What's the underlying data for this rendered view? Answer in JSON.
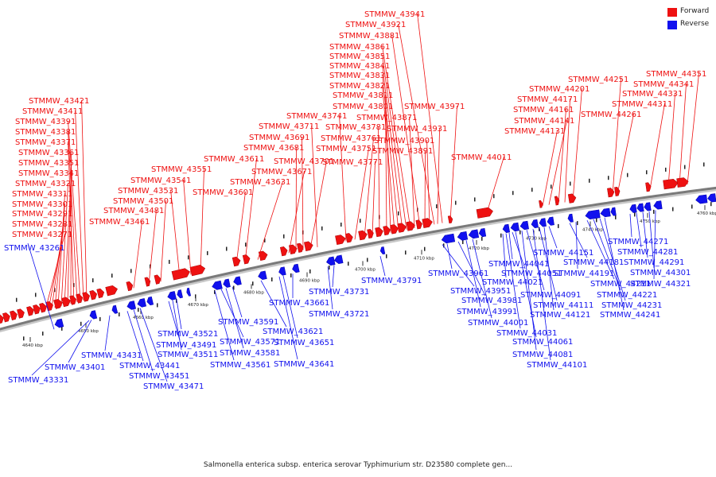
{
  "title": "Salmonella enterica subsp. enterica serovar Typhimurium str. D23580 complete gen...",
  "legend": {
    "forward_label": "Forward",
    "reverse_label": "Reverse",
    "forward_color": "#ee1111",
    "reverse_color": "#1111ee"
  },
  "scale": {
    "unit": "kbp",
    "ticks": [
      "4640 kbp",
      "4650 kbp",
      "4660 kbp",
      "4670 kbp",
      "4680 kbp",
      "4690 kbp",
      "4700 kbp",
      "4710 kbp",
      "4720 kbp",
      "4730 kbp",
      "4740 kbp",
      "4750 kbp",
      "4760 kbp"
    ]
  },
  "forward_genes": [
    "STMMW_43271",
    "STMMW_43281",
    "STMMW_43291",
    "STMMW_43301",
    "STMMW_43311",
    "STMMW_43321",
    "STMMW_43341",
    "STMMW_43351",
    "STMMW_43361",
    "STMMW_43371",
    "STMMW_43381",
    "STMMW_43391",
    "STMMW_43411",
    "STMMW_43421",
    "STMMW_43461",
    "STMMW_43481",
    "STMMW_43501",
    "STMMW_43531",
    "STMMW_43541",
    "STMMW_43551",
    "STMMW_43601",
    "STMMW_43611",
    "STMMW_43631",
    "STMMW_43671",
    "STMMW_43681",
    "STMMW_43691",
    "STMMW_43701",
    "STMMW_43711",
    "STMMW_43741",
    "STMMW_43751",
    "STMMW_43761",
    "STMMW_43771",
    "STMMW_43781",
    "STMMW_43801",
    "STMMW_43811",
    "STMMW_43821",
    "STMMW_43831",
    "STMMW_43841",
    "STMMW_43851",
    "STMMW_43861",
    "STMMW_43871",
    "STMMW_43881",
    "STMMW_43891",
    "STMMW_43901",
    "STMMW_43921",
    "STMMW_43931",
    "STMMW_43941",
    "STMMW_43971",
    "STMMW_44011",
    "STMMW_44131",
    "STMMW_44141",
    "STMMW_44161",
    "STMMW_44171",
    "STMMW_44201",
    "STMMW_44251",
    "STMMW_44261",
    "STMMW_44311",
    "STMMW_44331",
    "STMMW_44341",
    "STMMW_44351"
  ],
  "reverse_genes": [
    "STMMW_43261",
    "STMMW_43331",
    "STMMW_43401",
    "STMMW_43431",
    "STMMW_43441",
    "STMMW_43451",
    "STMMW_43471",
    "STMMW_43491",
    "STMMW_43511",
    "STMMW_43521",
    "STMMW_43561",
    "STMMW_43571",
    "STMMW_43581",
    "STMMW_43591",
    "STMMW_43621",
    "STMMW_43641",
    "STMMW_43651",
    "STMMW_43661",
    "STMMW_43721",
    "STMMW_43731",
    "STMMW_43791",
    "STMMW_43951",
    "STMMW_43961",
    "STMMW_43981",
    "STMMW_43991",
    "STMMW_44001",
    "STMMW_44021",
    "STMMW_44031",
    "STMMW_44041",
    "STMMW_44051",
    "STMMW_44061",
    "STMMW_44081",
    "STMMW_44091",
    "STMMW_44101",
    "STMMW_44111",
    "STMMW_44121",
    "STMMW_44151",
    "STMMW_44181",
    "STMMW_44191",
    "STMMW_44211",
    "STMMW_44221",
    "STMMW_44231",
    "STMMW_44241",
    "STMMW_44271",
    "STMMW_44281",
    "STMMW_44291",
    "STMMW_44301",
    "STMMW_44321"
  ]
}
